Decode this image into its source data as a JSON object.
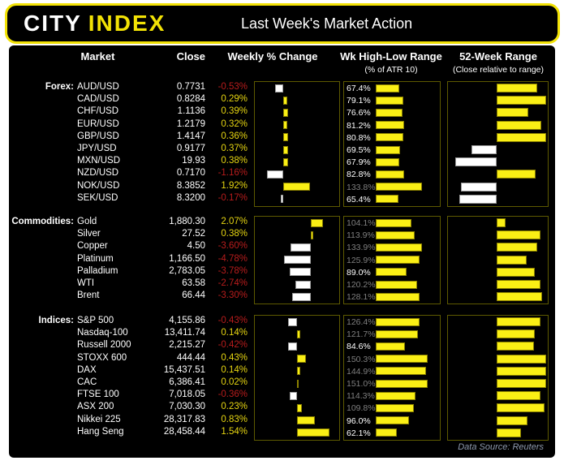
{
  "header": {
    "logo_part1": "CITY",
    "logo_part2": "INDEX",
    "title": "Last Week's Market Action"
  },
  "columns": {
    "market": "Market",
    "close": "Close",
    "weekly_change": "Weekly % Change",
    "week_high_low": "Wk High-Low Range",
    "week_high_low_sub": "(% of ATR 10)",
    "week52_range": "52-Week Range",
    "week52_range_sub": "(Close relative to range)"
  },
  "footer": {
    "data_source": "Data Source: Reuters"
  },
  "colors": {
    "bar_yellow": "#FAEF15",
    "accent_yellow": "#F2E205",
    "text_yellow": "#E5D411",
    "negative_red": "#B71C1C",
    "muted_grey": "#7F7F7F",
    "box_border": "#5E5A00",
    "footer_text": "#8E99AD"
  },
  "chart_data": {
    "type": "table",
    "title": "Last Week's Market Action",
    "notes": "Three embedded bar charts per row: Weekly % Change (yellow = positive, white = negative, diverging from zero axis); Wk High-Low Range as % of ATR(10) (yellow bar, grey label when >= 100%); 52-Week Range shows close relative to range midpoint (yellow right = upper half, white left = lower half, value in [-1,1] of half-range)",
    "sections": [
      {
        "label": "Forex:",
        "weekly_axis": {
          "min": -2,
          "max": 4
        },
        "rows": [
          {
            "market": "AUD/USD",
            "close": "0.7731",
            "weekly_pct": -0.53,
            "weekly_label": "-0.53%",
            "atr_pct": 67.4,
            "atr_label": "67.4%",
            "range52_pos": 0.79
          },
          {
            "market": "CAD/USD",
            "close": "0.8284",
            "weekly_pct": 0.29,
            "weekly_label": "0.29%",
            "atr_pct": 79.1,
            "atr_label": "79.1%",
            "range52_pos": 0.97
          },
          {
            "market": "CHF/USD",
            "close": "1.1136",
            "weekly_pct": 0.39,
            "weekly_label": "0.39%",
            "atr_pct": 76.6,
            "atr_label": "76.6%",
            "range52_pos": 0.62
          },
          {
            "market": "EUR/USD",
            "close": "1.2179",
            "weekly_pct": 0.32,
            "weekly_label": "0.32%",
            "atr_pct": 81.2,
            "atr_label": "81.2%",
            "range52_pos": 0.87
          },
          {
            "market": "GBP/USD",
            "close": "1.4147",
            "weekly_pct": 0.36,
            "weekly_label": "0.36%",
            "atr_pct": 80.8,
            "atr_label": "80.8%",
            "range52_pos": 0.97
          },
          {
            "market": "JPY/USD",
            "close": "0.9177",
            "weekly_pct": 0.37,
            "weekly_label": "0.37%",
            "atr_pct": 69.5,
            "atr_label": "69.5%",
            "range52_pos": -0.53
          },
          {
            "market": "MXN/USD",
            "close": "19.93",
            "weekly_pct": 0.38,
            "weekly_label": "0.38%",
            "atr_pct": 67.9,
            "atr_label": "67.9%",
            "range52_pos": -0.88
          },
          {
            "market": "NZD/USD",
            "close": "0.7170",
            "weekly_pct": -1.16,
            "weekly_label": "-1.16%",
            "atr_pct": 82.8,
            "atr_label": "82.8%",
            "range52_pos": 0.76
          },
          {
            "market": "NOK/USD",
            "close": "8.3852",
            "weekly_pct": 1.92,
            "weekly_label": "1.92%",
            "atr_pct": 133.8,
            "atr_label": "133.8%",
            "range52_pos": -0.76
          },
          {
            "market": "SEK/USD",
            "close": "8.3200",
            "weekly_pct": -0.17,
            "weekly_label": "-0.17%",
            "atr_pct": 65.4,
            "atr_label": "65.4%",
            "range52_pos": -0.8
          }
        ]
      },
      {
        "label": "Commodities:",
        "weekly_axis": {
          "min": -10,
          "max": 5
        },
        "rows": [
          {
            "market": "Gold",
            "close": "1,880.30",
            "weekly_pct": 2.07,
            "weekly_label": "2.07%",
            "atr_pct": 104.1,
            "atr_label": "104.1%",
            "range52_pos": 0.17
          },
          {
            "market": "Silver",
            "close": "27.52",
            "weekly_pct": 0.38,
            "weekly_label": "0.38%",
            "atr_pct": 113.9,
            "atr_label": "113.9%",
            "range52_pos": 0.86
          },
          {
            "market": "Copper",
            "close": "4.50",
            "weekly_pct": -3.6,
            "weekly_label": "-3.60%",
            "atr_pct": 133.9,
            "atr_label": "133.9%",
            "range52_pos": 0.79
          },
          {
            "market": "Platinum",
            "close": "1,166.50",
            "weekly_pct": -4.78,
            "weekly_label": "-4.78%",
            "atr_pct": 125.9,
            "atr_label": "125.9%",
            "range52_pos": 0.58
          },
          {
            "market": "Palladium",
            "close": "2,783.05",
            "weekly_pct": -3.78,
            "weekly_label": "-3.78%",
            "atr_pct": 89.0,
            "atr_label": "89.0%",
            "range52_pos": 0.74
          },
          {
            "market": "WTI",
            "close": "63.58",
            "weekly_pct": -2.74,
            "weekly_label": "-2.74%",
            "atr_pct": 120.2,
            "atr_label": "120.2%",
            "range52_pos": 0.86
          },
          {
            "market": "Brent",
            "close": "66.44",
            "weekly_pct": -3.3,
            "weekly_label": "-3.30%",
            "atr_pct": 128.1,
            "atr_label": "128.1%",
            "range52_pos": 0.89
          }
        ]
      },
      {
        "label": "Indices:",
        "weekly_axis": {
          "min": -2,
          "max": 2
        },
        "rows": [
          {
            "market": "S&P 500",
            "close": "4,155.86",
            "weekly_pct": -0.43,
            "weekly_label": "-0.43%",
            "atr_pct": 126.4,
            "atr_label": "126.4%",
            "range52_pos": 0.86
          },
          {
            "market": "Nasdaq-100",
            "close": "13,411.74",
            "weekly_pct": 0.14,
            "weekly_label": "0.14%",
            "atr_pct": 121.7,
            "atr_label": "121.7%",
            "range52_pos": 0.74
          },
          {
            "market": "Russell 2000",
            "close": "2,215.27",
            "weekly_pct": -0.42,
            "weekly_label": "-0.42%",
            "atr_pct": 84.6,
            "atr_label": "84.6%",
            "range52_pos": 0.73
          },
          {
            "market": "STOXX 600",
            "close": "444.44",
            "weekly_pct": 0.43,
            "weekly_label": "0.43%",
            "atr_pct": 150.3,
            "atr_label": "150.3%",
            "range52_pos": 0.97
          },
          {
            "market": "DAX",
            "close": "15,437.51",
            "weekly_pct": 0.14,
            "weekly_label": "0.14%",
            "atr_pct": 144.9,
            "atr_label": "144.9%",
            "range52_pos": 0.97
          },
          {
            "market": "CAC",
            "close": "6,386.41",
            "weekly_pct": 0.02,
            "weekly_label": "0.02%",
            "atr_pct": 151.0,
            "atr_label": "151.0%",
            "range52_pos": 0.97
          },
          {
            "market": "FTSE 100",
            "close": "7,018.05",
            "weekly_pct": -0.36,
            "weekly_label": "-0.36%",
            "atr_pct": 114.3,
            "atr_label": "114.3%",
            "range52_pos": 0.85
          },
          {
            "market": "ASX 200",
            "close": "7,030.30",
            "weekly_pct": 0.23,
            "weekly_label": "0.23%",
            "atr_pct": 109.8,
            "atr_label": "109.8%",
            "range52_pos": 0.94
          },
          {
            "market": "Nikkei 225",
            "close": "28,317.83",
            "weekly_pct": 0.83,
            "weekly_label": "0.83%",
            "atr_pct": 96.0,
            "atr_label": "96.0%",
            "range52_pos": 0.61
          },
          {
            "market": "Hang Seng",
            "close": "28,458.44",
            "weekly_pct": 1.54,
            "weekly_label": "1.54%",
            "atr_pct": 62.1,
            "atr_label": "62.1%",
            "range52_pos": 0.47
          }
        ]
      }
    ]
  }
}
